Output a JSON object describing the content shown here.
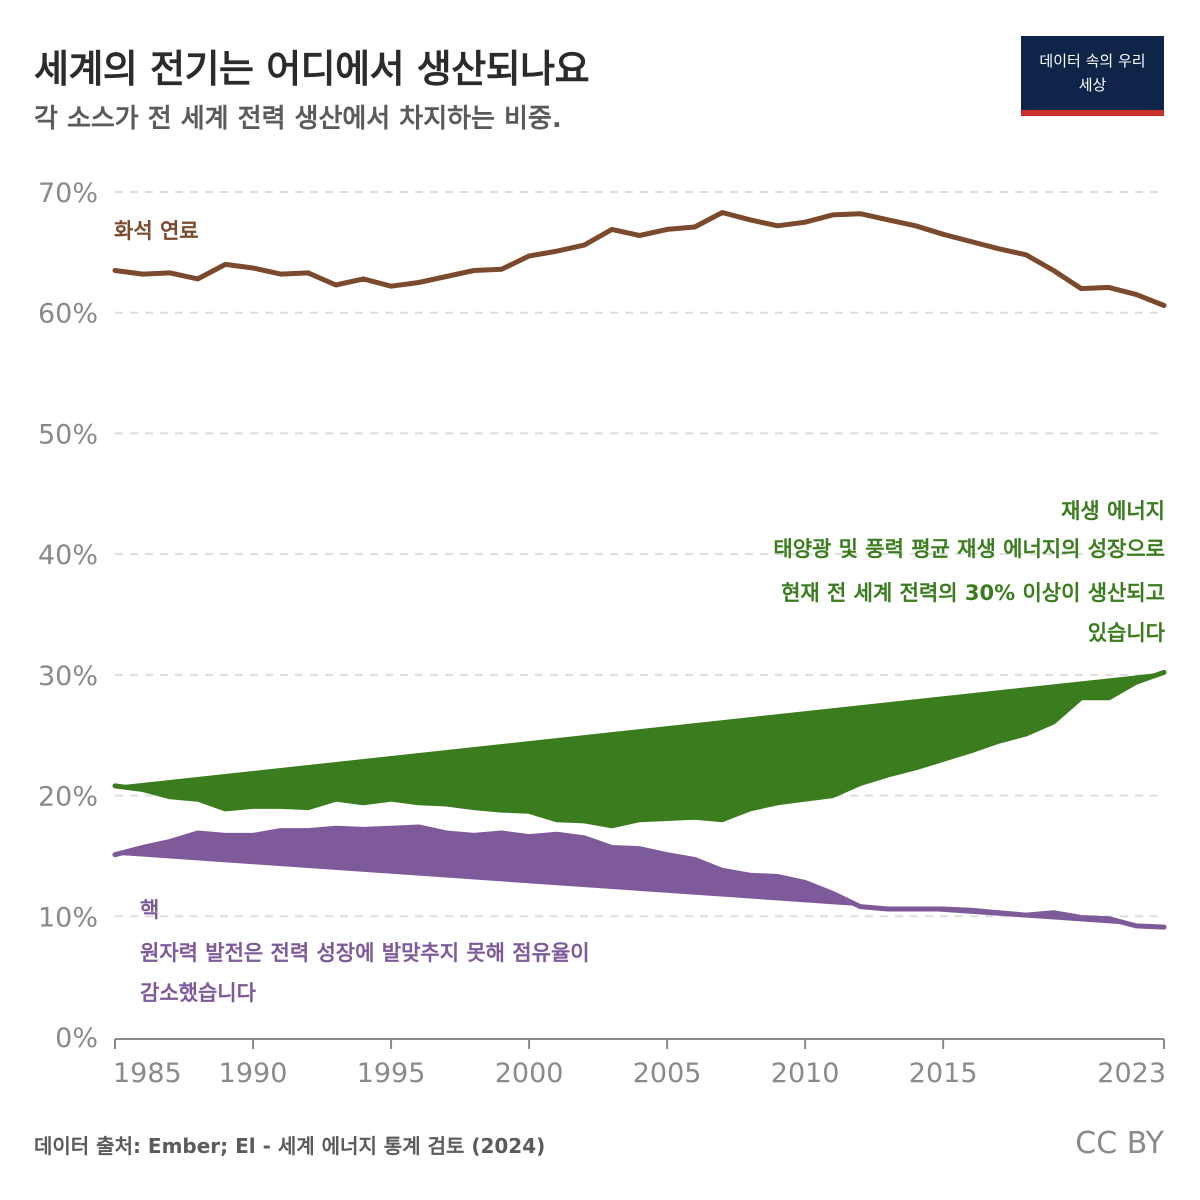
{
  "header": {
    "title": "세계의 전기는 어디에서 생산되나요",
    "subtitle": "각 소스가 전 세계 전력 생산에서 차지하는 비중.",
    "logo_line1": "데이터 속의 우리",
    "logo_line2": "세상"
  },
  "footer": {
    "source": "데이터 출처: Ember; El - 세계 에너지 통계 검토 (2024)",
    "license": "CC BY"
  },
  "colors": {
    "fossil": "#7b4a2d",
    "renewable": "#3b7d1e",
    "nuclear": "#7e5a9b",
    "grid": "#dddddd",
    "axis": "#8a8a8a"
  },
  "chart_data": {
    "type": "line",
    "title": "세계의 전기는 어디에서 생산되나요",
    "subtitle": "각 소스가 전 세계 전력 생산에서 차지하는 비중.",
    "xlabel": "",
    "ylabel": "",
    "xlim": [
      1985,
      2023
    ],
    "ylim": [
      0,
      70
    ],
    "y_ticks": [
      "0%",
      "10%",
      "20%",
      "30%",
      "40%",
      "50%",
      "60%",
      "70%"
    ],
    "x_ticks": [
      "1985",
      "1990",
      "1995",
      "2000",
      "2005",
      "2010",
      "2015",
      "2023"
    ],
    "grid": "horizontal dashed",
    "x": [
      1985,
      1986,
      1987,
      1988,
      1989,
      1990,
      1991,
      1992,
      1993,
      1994,
      1995,
      1996,
      1997,
      1998,
      1999,
      2000,
      2001,
      2002,
      2003,
      2004,
      2005,
      2006,
      2007,
      2008,
      2009,
      2010,
      2011,
      2012,
      2013,
      2014,
      2015,
      2016,
      2017,
      2018,
      2019,
      2020,
      2021,
      2022,
      2023
    ],
    "series": [
      {
        "name": "화석 연료",
        "color": "#7b4a2d",
        "values": [
          63.5,
          63.2,
          63.3,
          62.8,
          64.0,
          63.7,
          63.2,
          63.3,
          62.3,
          62.8,
          62.2,
          62.5,
          63.0,
          63.5,
          63.6,
          64.7,
          65.1,
          65.6,
          66.9,
          66.4,
          66.9,
          67.1,
          68.3,
          67.7,
          67.2,
          67.5,
          68.1,
          68.2,
          67.7,
          67.2,
          66.5,
          65.9,
          65.3,
          64.8,
          63.5,
          62.0,
          62.1,
          61.5,
          60.6
        ]
      },
      {
        "name": "재생 에너지",
        "color": "#3b7d1e",
        "values": [
          20.8,
          20.5,
          19.9,
          19.7,
          18.9,
          19.1,
          19.1,
          19.0,
          19.7,
          19.4,
          19.7,
          19.4,
          19.3,
          19.0,
          18.8,
          18.7,
          18.0,
          17.9,
          17.5,
          18.0,
          18.1,
          18.2,
          18.0,
          18.9,
          19.4,
          19.7,
          20.0,
          21.0,
          21.7,
          22.3,
          23.0,
          23.7,
          24.5,
          25.1,
          26.1,
          28.1,
          28.1,
          29.4,
          30.2
        ]
      },
      {
        "name": "핵",
        "color": "#7e5a9b",
        "values": [
          15.1,
          15.7,
          16.2,
          16.9,
          16.7,
          16.7,
          17.1,
          17.1,
          17.3,
          17.2,
          17.3,
          17.4,
          16.9,
          16.7,
          16.9,
          16.6,
          16.8,
          16.5,
          15.7,
          15.6,
          15.1,
          14.7,
          13.8,
          13.4,
          13.3,
          12.8,
          11.9,
          10.8,
          10.6,
          10.6,
          10.6,
          10.5,
          10.3,
          10.1,
          10.3,
          9.9,
          9.8,
          9.2,
          9.1
        ]
      }
    ],
    "annotations": {
      "fossil": {
        "label": "화석 연료"
      },
      "renewable": {
        "label": "재생 에너지",
        "note_line1": "태양광 및 풍력 평균 재생 에너지의 성장으로",
        "note_line2": "현재 전 세계 전력의 30% 이상이 생산되고",
        "note_line3": "있습니다"
      },
      "nuclear": {
        "label": "핵",
        "note_line1": "원자력 발전은 전력 성장에 발맞추지 못해 점유율이",
        "note_line2": "감소했습니다"
      }
    }
  }
}
